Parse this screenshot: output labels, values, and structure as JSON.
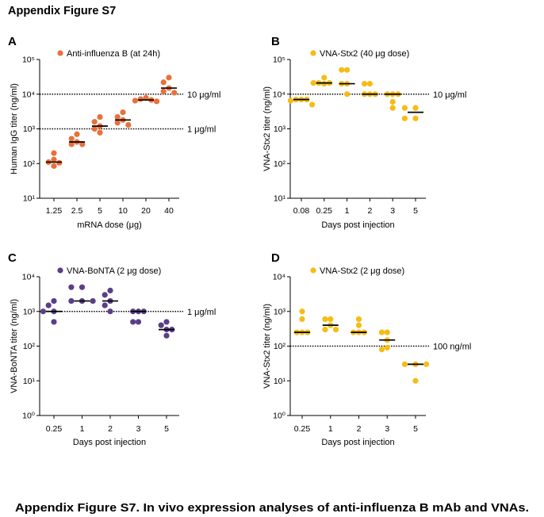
{
  "figure": {
    "title": "Appendix Figure S7",
    "caption": "Appendix Figure S7. In vivo expression analyses of anti-influenza B mAb and VNAs."
  },
  "chart_data": [
    {
      "panel": "A",
      "type": "scatter",
      "xlabel": "mRNA dose (μg)",
      "ylabel": "Human IgG titer (ng/ml)",
      "y_scale": "log",
      "ylim": [
        10,
        100000
      ],
      "y_ticks": [
        10,
        100,
        1000,
        10000,
        100000
      ],
      "y_tick_labels": [
        "10¹",
        "10²",
        "10³",
        "10⁴",
        "10⁵"
      ],
      "grid": false,
      "legend": "top-left",
      "categories": [
        "1.25",
        "2.5",
        "5",
        "10",
        "20",
        "40"
      ],
      "series": [
        {
          "name": "Anti-influenza B (at 24h)",
          "color": "#E8713B",
          "points": [
            [
              200,
              130,
              110,
              105,
              85
            ],
            [
              700,
              520,
              420,
              360,
              360
            ],
            [
              2200,
              1600,
              1200,
              1000,
              780
            ],
            [
              3000,
              2200,
              1800,
              1500,
              1300
            ],
            [
              7800,
              7200,
              6800,
              6500,
              6200
            ],
            [
              30000,
              22000,
              15000,
              12000,
              11000
            ]
          ],
          "median": [
            110,
            420,
            1200,
            1800,
            6800,
            15000
          ]
        }
      ],
      "reference_lines": [
        {
          "value": 10000,
          "label": "10 μg/ml"
        },
        {
          "value": 1000,
          "label": "1 μg/ml"
        }
      ]
    },
    {
      "panel": "B",
      "type": "scatter",
      "xlabel": "Days post injection",
      "ylabel": "VNA-Stx2 titer (ng/ml)",
      "y_scale": "log",
      "ylim": [
        10,
        100000
      ],
      "y_ticks": [
        10,
        100,
        1000,
        10000,
        100000
      ],
      "y_tick_labels": [
        "10¹",
        "10²",
        "10³",
        "10⁴",
        "10⁵"
      ],
      "grid": false,
      "legend": "top-left",
      "categories": [
        "0.08",
        "0.25",
        "1",
        "2",
        "3",
        "5"
      ],
      "series": [
        {
          "name": "VNA-Stx2 (40 μg dose)",
          "color": "#F6BC16",
          "points": [
            [
              7000,
              7000,
              7000,
              6500,
              5000
            ],
            [
              30000,
              21000,
              21000,
              21000,
              20000
            ],
            [
              50000,
              50000,
              20000,
              20000,
              10000
            ],
            [
              20000,
              20000,
              10000,
              10000,
              10000
            ],
            [
              10000,
              10000,
              10000,
              6000,
              4000
            ],
            [
              4000,
              4000,
              2000,
              2000
            ]
          ],
          "median": [
            7000,
            21000,
            20000,
            10000,
            10000,
            3000
          ]
        }
      ],
      "reference_lines": [
        {
          "value": 10000,
          "label": "10 μg/ml"
        }
      ]
    },
    {
      "panel": "C",
      "type": "scatter",
      "xlabel": "Days post injection",
      "ylabel": "VNA-BoNTA titer (ng/ml)",
      "y_scale": "log",
      "ylim": [
        1,
        10000
      ],
      "y_ticks": [
        1,
        10,
        100,
        1000,
        10000
      ],
      "y_tick_labels": [
        "10⁰",
        "10¹",
        "10²",
        "10³",
        "10⁴"
      ],
      "grid": false,
      "legend": "top-left",
      "categories": [
        "0.25",
        "1",
        "2",
        "3",
        "5"
      ],
      "series": [
        {
          "name": "VNA-BoNTA (2 μg dose)",
          "color": "#5A3F86",
          "points": [
            [
              2000,
              1500,
              1000,
              1000,
              500
            ],
            [
              5000,
              5000,
              2000,
              2000,
              2000
            ],
            [
              4000,
              3000,
              2000,
              1500,
              1000
            ],
            [
              1000,
              1000,
              1000,
              500,
              500
            ],
            [
              500,
              400,
              300,
              300,
              200
            ]
          ],
          "median": [
            1000,
            2000,
            2000,
            1000,
            300
          ]
        }
      ],
      "reference_lines": [
        {
          "value": 1000,
          "label": "1 μg/ml"
        }
      ]
    },
    {
      "panel": "D",
      "type": "scatter",
      "xlabel": "Days post injection",
      "ylabel": "VNA-Stx2 titer (ng/ml)",
      "y_scale": "log",
      "ylim": [
        1,
        10000
      ],
      "y_ticks": [
        1,
        10,
        100,
        1000,
        10000
      ],
      "y_tick_labels": [
        "10⁰",
        "10¹",
        "10²",
        "10³",
        "10⁴"
      ],
      "grid": false,
      "legend": "top-left",
      "categories": [
        "0.25",
        "1",
        "2",
        "3",
        "5"
      ],
      "series": [
        {
          "name": "VNA-Stx2 (2 μg dose)",
          "color": "#F6BC16",
          "points": [
            [
              1000,
              600,
              250,
              250,
              250
            ],
            [
              600,
              600,
              400,
              300,
              300
            ],
            [
              600,
              400,
              250,
              250,
              250
            ],
            [
              250,
              250,
              150,
              90,
              80
            ],
            [
              30,
              30,
              30,
              30,
              10
            ]
          ],
          "median": [
            250,
            400,
            250,
            150,
            30
          ]
        }
      ],
      "reference_lines": [
        {
          "value": 100,
          "label": "100 ng/ml"
        }
      ]
    }
  ]
}
